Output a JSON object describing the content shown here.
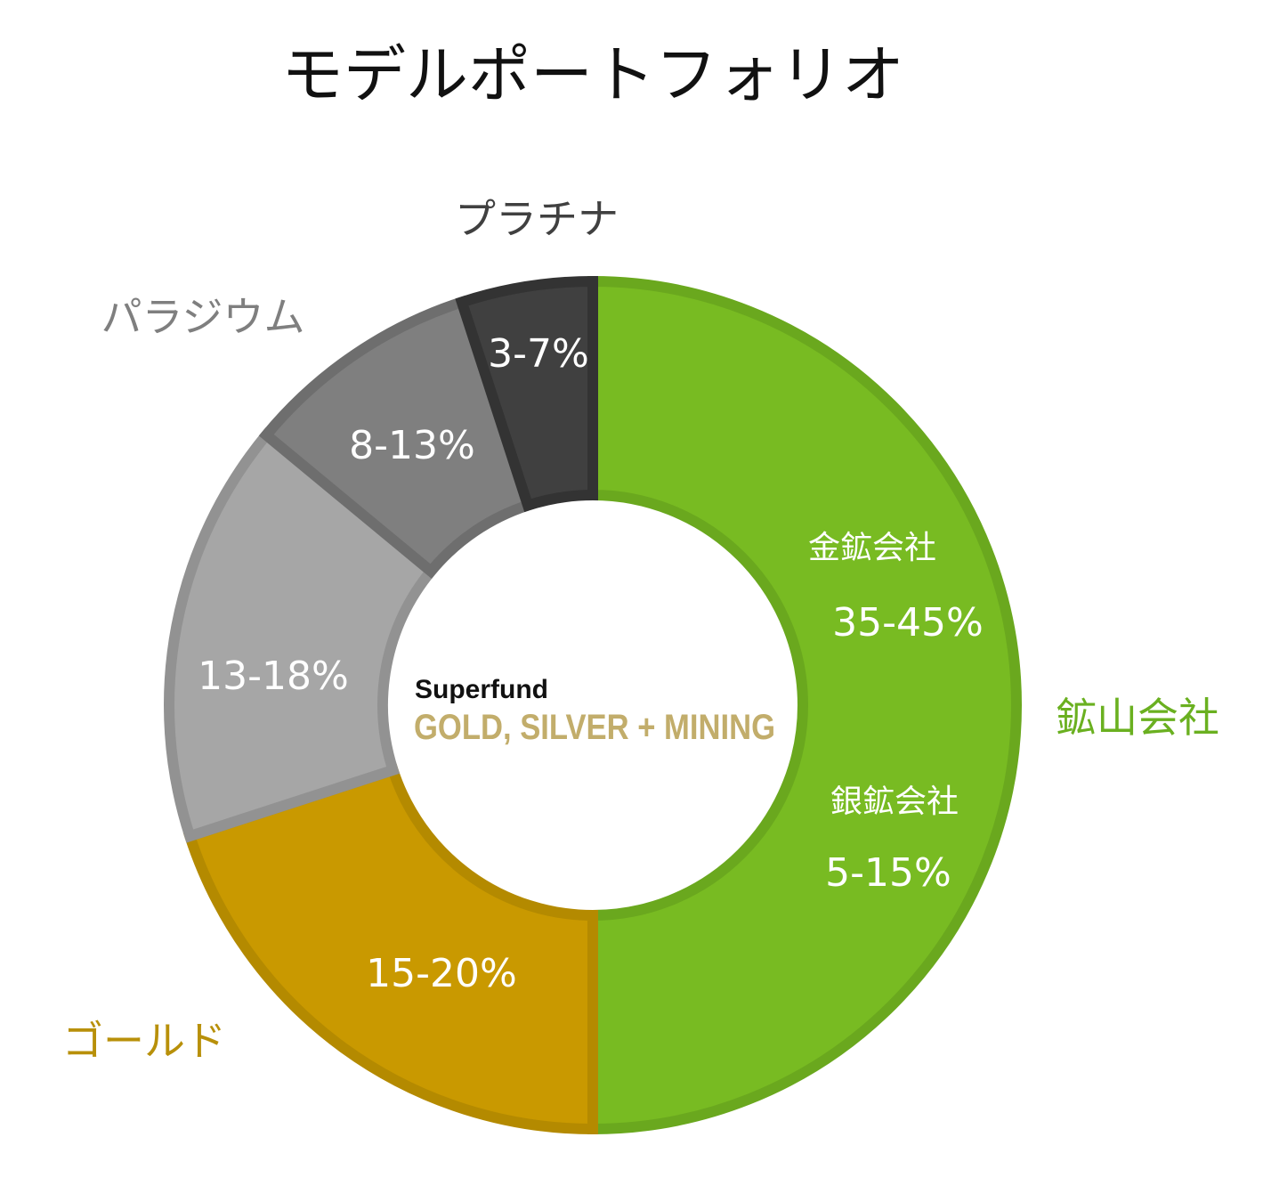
{
  "chart_data": {
    "type": "pie",
    "title": "モデルポートフォリオ",
    "series": [
      {
        "name": "鉱山会社",
        "value": 50,
        "color": "#78BB22",
        "stroke": "#6AA81E",
        "text_color": "#6AB020",
        "sub_items": [
          {
            "name": "金鉱会社",
            "label": "35-45%"
          },
          {
            "name": "銀鉱会社",
            "label": "5-15%"
          }
        ]
      },
      {
        "name": "ゴールド",
        "value": 20,
        "label": "15-20%",
        "color": "#C99900",
        "stroke": "#B48A00",
        "text_color": "#B8900A"
      },
      {
        "name": "",
        "value": 16,
        "label": "13-18%",
        "color": "#A6A6A6",
        "stroke": "#929292",
        "text_color": "#8C8C8C"
      },
      {
        "name": "パラジウム",
        "value": 9,
        "label": "8-13%",
        "color": "#7F7F7F",
        "stroke": "#6E6E6E",
        "text_color": "#7F7F7F"
      },
      {
        "name": "プラチナ",
        "value": 5,
        "label": "3-7%",
        "color": "#404040",
        "stroke": "#333333",
        "text_color": "#404040"
      }
    ],
    "legend": "labels-around"
  },
  "logo": {
    "line1": "Superfund",
    "line2": "GOLD, SILVER + MINING",
    "line2_color": "#C2AD6B"
  }
}
